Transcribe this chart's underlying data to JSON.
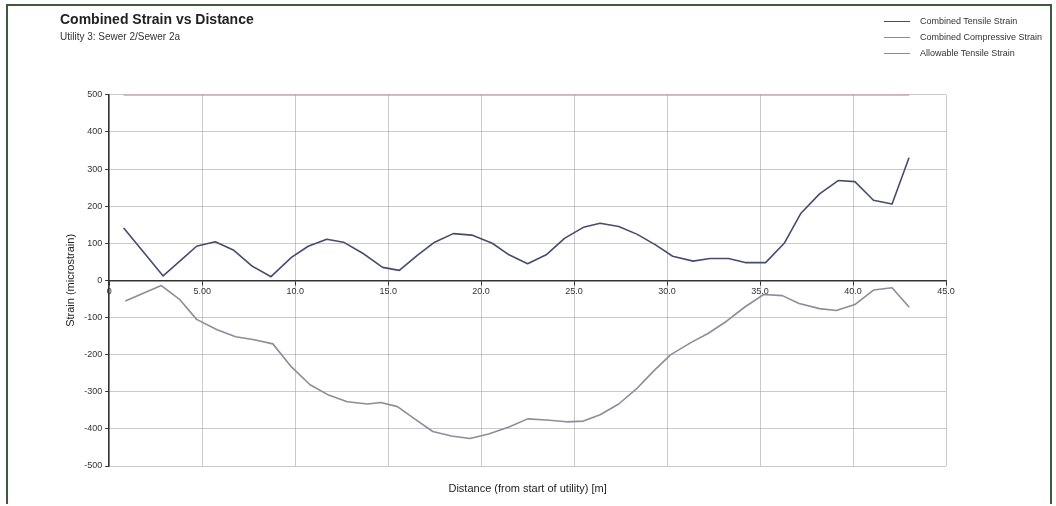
{
  "chart_data": {
    "type": "line",
    "title": "Combined Strain vs Distance",
    "subtitle": "Utility 3: Sewer 2/Sewer 2a",
    "xlabel": "Distance (from start of utility) [m]",
    "ylabel": "Strain (microstrain)",
    "xlim": [
      0,
      45
    ],
    "xticks": [
      {
        "value": 0,
        "label": "0"
      },
      {
        "value": 5,
        "label": "5.00"
      },
      {
        "value": 10,
        "label": "10.0"
      },
      {
        "value": 15,
        "label": "15.0"
      },
      {
        "value": 20,
        "label": "20.0"
      },
      {
        "value": 25,
        "label": "25.0"
      },
      {
        "value": 30,
        "label": "30.0"
      },
      {
        "value": 35,
        "label": "35.0"
      },
      {
        "value": 40,
        "label": "40.0"
      },
      {
        "value": 45,
        "label": "45.0"
      }
    ],
    "ylim": [
      -500,
      500
    ],
    "yticks": [
      -500,
      -400,
      -300,
      -200,
      -100,
      0,
      100,
      200,
      300,
      400,
      500
    ],
    "grid": true,
    "legend": "top right",
    "line_style": "solid",
    "series": [
      {
        "name": "Combined Tensile Strain",
        "color": "#4a4a6e",
        "x": [
          0.8,
          2.9,
          4.7,
          5.7,
          6.7,
          7.7,
          8.7,
          9.8,
          10.7,
          11.7,
          12.6,
          13.7,
          14.7,
          15.6,
          16.6,
          17.5,
          18.5,
          19.5,
          20.6,
          21.5,
          22.5,
          23.5,
          24.5,
          25.5,
          26.4,
          27.4,
          28.4,
          29.4,
          30.3,
          31.4,
          32.3,
          33.3,
          34.2,
          35.3,
          36.3,
          37.2,
          38.2,
          39.2,
          40.1,
          41.1,
          42.1,
          43.0
        ],
        "values": [
          140,
          12,
          92,
          104,
          81,
          38,
          10,
          62,
          92,
          111,
          103,
          71,
          35,
          27,
          69,
          103,
          126,
          122,
          100,
          69,
          45,
          69,
          114,
          143,
          154,
          145,
          124,
          95,
          65,
          52,
          59,
          59,
          48,
          48,
          100,
          181,
          233,
          269,
          266,
          216,
          206,
          329
        ]
      },
      {
        "name": "Combined Compressive Strain",
        "color": "#8c8c9c",
        "x": [
          0.9,
          2.8,
          3.8,
          4.7,
          5.8,
          6.8,
          7.8,
          8.8,
          9.8,
          10.8,
          11.8,
          12.8,
          13.9,
          14.6,
          15.5,
          16.5,
          17.4,
          18.4,
          19.4,
          20.4,
          21.5,
          22.5,
          23.5,
          24.6,
          25.5,
          26.4,
          27.4,
          28.4,
          29.3,
          30.2,
          31.3,
          32.2,
          33.2,
          34.2,
          35.2,
          36.2,
          37.1,
          38.2,
          39.1,
          40.1,
          41.1,
          42.1,
          43.0
        ],
        "values": [
          -55,
          -14,
          -52,
          -105,
          -133,
          -152,
          -160,
          -171,
          -233,
          -281,
          -309,
          -327,
          -333,
          -329,
          -340,
          -376,
          -407,
          -419,
          -426,
          -414,
          -395,
          -373,
          -376,
          -381,
          -379,
          -362,
          -333,
          -290,
          -243,
          -200,
          -167,
          -143,
          -110,
          -71,
          -38,
          -41,
          -62,
          -76,
          -81,
          -65,
          -26,
          -20,
          -71
        ]
      },
      {
        "name": "Allowable Tensile Strain",
        "color": "#e0609c",
        "x": [
          0.8,
          43.0
        ],
        "values": [
          500,
          500
        ]
      }
    ]
  }
}
